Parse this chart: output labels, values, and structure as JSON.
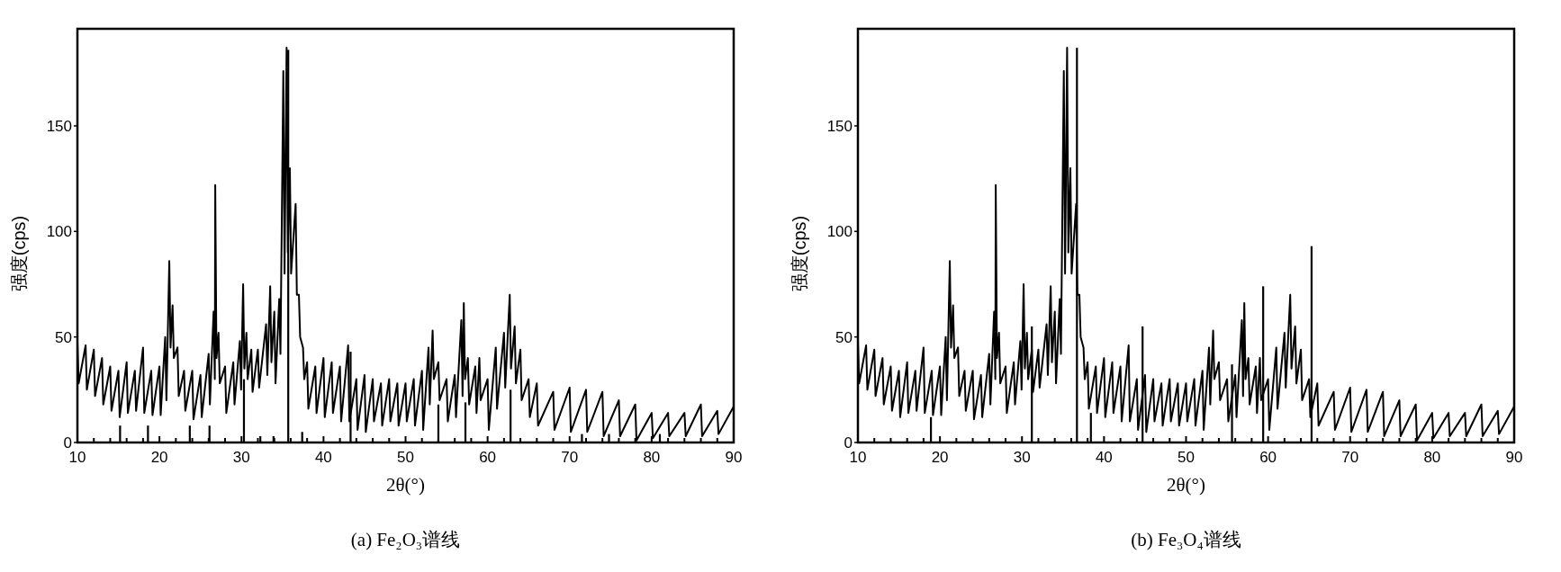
{
  "chart_data": [
    {
      "type": "line",
      "title": "(a) Fe₂O₃谱线",
      "xlabel": "2θ(°)",
      "ylabel": "强度(cps)",
      "xlim": [
        10,
        90
      ],
      "ylim": [
        0,
        196
      ],
      "xticks": [
        10,
        {
          "value": 12,
          "label": null
        },
        {
          "value": 14,
          "label": null
        },
        {
          "value": 16,
          "label": null
        },
        {
          "value": 18,
          "label": null
        },
        20,
        {
          "value": 22,
          "label": null
        },
        {
          "value": 24,
          "label": null
        },
        {
          "value": 26,
          "label": null
        },
        {
          "value": 28,
          "label": null
        },
        30,
        {
          "value": 32,
          "label": null
        },
        {
          "value": 34,
          "label": null
        },
        {
          "value": 36,
          "label": null
        },
        {
          "value": 38,
          "label": null
        },
        40,
        {
          "value": 42,
          "label": null
        },
        {
          "value": 44,
          "label": null
        },
        {
          "value": 46,
          "label": null
        },
        {
          "value": 48,
          "label": null
        },
        50,
        {
          "value": 52,
          "label": null
        },
        {
          "value": 54,
          "label": null
        },
        {
          "value": 56,
          "label": null
        },
        {
          "value": 58,
          "label": null
        },
        60,
        {
          "value": 62,
          "label": null
        },
        {
          "value": 64,
          "label": null
        },
        {
          "value": 66,
          "label": null
        },
        {
          "value": 68,
          "label": null
        },
        70,
        {
          "value": 72,
          "label": null
        },
        {
          "value": 74,
          "label": null
        },
        {
          "value": 76,
          "label": null
        },
        {
          "value": 78,
          "label": null
        },
        80,
        {
          "value": 82,
          "label": null
        },
        {
          "value": 84,
          "label": null
        },
        {
          "value": 86,
          "label": null
        },
        {
          "value": 88,
          "label": null
        },
        90
      ],
      "yticks": [
        0,
        50,
        100,
        150
      ],
      "series": [
        {
          "color": "#000000",
          "x": [
            10,
            10.15,
            11,
            11.15,
            12,
            12.15,
            13,
            13.15,
            14,
            14.15,
            15,
            15.15,
            16,
            16.15,
            17,
            17.15,
            18,
            18.15,
            19,
            19.15,
            20,
            20.15,
            20.7,
            20.85,
            21.2,
            21.35,
            21.6,
            21.75,
            22.2,
            22.35,
            23,
            23.15,
            24,
            24.15,
            25,
            25.15,
            26,
            26.15,
            26.6,
            26.75,
            26.8,
            26.95,
            27.2,
            27.35,
            28,
            28.15,
            29,
            29.15,
            29.8,
            29.95,
            30.2,
            30.35,
            30.6,
            30.75,
            31.2,
            31.35,
            32,
            32.15,
            33,
            33.15,
            33.5,
            33.65,
            34,
            34.15,
            34.6,
            34.75,
            35.1,
            35.25,
            35.5,
            35.65,
            35.9,
            36.05,
            36.6,
            36.75,
            37,
            37.15,
            37.5,
            37.65,
            38,
            38.15,
            39,
            39.15,
            40,
            40.15,
            41,
            41.15,
            42,
            42.15,
            43,
            43.15,
            44,
            44.15,
            45,
            45.15,
            46,
            46.15,
            47,
            47.15,
            48,
            48.15,
            49,
            49.15,
            50,
            50.15,
            51,
            51.15,
            52,
            52.15,
            52.8,
            52.95,
            53.3,
            53.45,
            54,
            54.15,
            55,
            55.15,
            56,
            56.15,
            56.8,
            56.95,
            57.1,
            57.25,
            57.6,
            57.75,
            58.5,
            58.65,
            59,
            59.15,
            60,
            60.15,
            61,
            61.15,
            62,
            62.15,
            62.7,
            62.85,
            63.3,
            63.45,
            64,
            64.15,
            65,
            65.15,
            66,
            66.15,
            68,
            68.15,
            70,
            70.15,
            72,
            72.15,
            74,
            74.15,
            76,
            76.15,
            78,
            78.15,
            80,
            80.15,
            82,
            82.15,
            84,
            84.15,
            86,
            86.15,
            88,
            88.15,
            90
          ],
          "values": [
            48,
            28,
            46,
            25,
            44,
            22,
            40,
            18,
            36,
            15,
            34,
            12,
            38,
            14,
            34,
            15,
            45,
            14,
            34,
            13,
            36,
            13,
            50,
            20,
            86,
            45,
            65,
            40,
            45,
            22,
            34,
            15,
            34,
            11,
            32,
            12,
            42,
            18,
            62,
            30,
            122,
            40,
            52,
            28,
            36,
            14,
            38,
            18,
            48,
            25,
            75,
            35,
            52,
            30,
            44,
            24,
            44,
            26,
            56,
            32,
            74,
            38,
            62,
            28,
            68,
            42,
            176,
            80,
            187,
            90,
            130,
            80,
            113,
            70,
            70,
            50,
            45,
            30,
            38,
            16,
            36,
            14,
            40,
            12,
            38,
            14,
            36,
            10,
            46,
            10,
            30,
            6,
            32,
            5,
            30,
            10,
            28,
            8,
            30,
            10,
            28,
            8,
            28,
            10,
            30,
            8,
            34,
            6,
            45,
            18,
            53,
            30,
            38,
            20,
            30,
            10,
            32,
            12,
            58,
            22,
            66,
            30,
            40,
            18,
            36,
            14,
            40,
            20,
            30,
            6,
            45,
            16,
            52,
            26,
            70,
            35,
            55,
            28,
            44,
            20,
            30,
            12,
            28,
            8,
            24,
            6,
            26,
            5,
            25,
            5,
            24,
            3,
            20,
            3,
            18,
            1,
            14,
            2,
            14,
            3,
            14,
            3,
            18,
            3,
            15,
            4,
            17
          ]
        },
        {
          "type": "bar",
          "color": "#000000",
          "x": [
            15.2,
            18.6,
            23.7,
            26.1,
            30.3,
            32.3,
            33.9,
            35.7,
            37.4,
            43.3,
            54,
            57.3,
            62.8,
            71.5,
            74.8,
            81
          ],
          "values": [
            8,
            8,
            8,
            8,
            30,
            3,
            3,
            186,
            5,
            43,
            18,
            19,
            25,
            4,
            4,
            4
          ]
        }
      ]
    },
    {
      "type": "line",
      "title": "(b) Fe₃O₄谱线",
      "xlabel": "2θ(°)",
      "ylabel": "强度(cps)",
      "xlim": [
        10,
        90
      ],
      "ylim": [
        0,
        196
      ],
      "xticks": [
        10,
        {
          "value": 12,
          "label": null
        },
        {
          "value": 14,
          "label": null
        },
        {
          "value": 16,
          "label": null
        },
        {
          "value": 18,
          "label": null
        },
        20,
        {
          "value": 22,
          "label": null
        },
        {
          "value": 24,
          "label": null
        },
        {
          "value": 26,
          "label": null
        },
        {
          "value": 28,
          "label": null
        },
        30,
        {
          "value": 32,
          "label": null
        },
        {
          "value": 34,
          "label": null
        },
        {
          "value": 36,
          "label": null
        },
        {
          "value": 38,
          "label": null
        },
        40,
        {
          "value": 42,
          "label": null
        },
        {
          "value": 44,
          "label": null
        },
        {
          "value": 46,
          "label": null
        },
        {
          "value": 48,
          "label": null
        },
        50,
        {
          "value": 52,
          "label": null
        },
        {
          "value": 54,
          "label": null
        },
        {
          "value": 56,
          "label": null
        },
        {
          "value": 58,
          "label": null
        },
        60,
        {
          "value": 62,
          "label": null
        },
        {
          "value": 64,
          "label": null
        },
        {
          "value": 66,
          "label": null
        },
        {
          "value": 68,
          "label": null
        },
        70,
        {
          "value": 72,
          "label": null
        },
        {
          "value": 74,
          "label": null
        },
        {
          "value": 76,
          "label": null
        },
        {
          "value": 78,
          "label": null
        },
        80,
        {
          "value": 82,
          "label": null
        },
        {
          "value": 84,
          "label": null
        },
        {
          "value": 86,
          "label": null
        },
        {
          "value": 88,
          "label": null
        },
        90
      ],
      "yticks": [
        0,
        50,
        100,
        150
      ],
      "series": [
        {
          "color": "#000000",
          "x": [
            10,
            10.15,
            11,
            11.15,
            12,
            12.15,
            13,
            13.15,
            14,
            14.15,
            15,
            15.15,
            16,
            16.15,
            17,
            17.15,
            18,
            18.15,
            19,
            19.15,
            20,
            20.15,
            20.7,
            20.85,
            21.2,
            21.35,
            21.6,
            21.75,
            22.2,
            22.35,
            23,
            23.15,
            24,
            24.15,
            25,
            25.15,
            26,
            26.15,
            26.6,
            26.75,
            26.8,
            26.95,
            27.2,
            27.35,
            28,
            28.15,
            29,
            29.15,
            29.8,
            29.95,
            30.2,
            30.35,
            30.6,
            30.75,
            31.2,
            31.35,
            32,
            32.15,
            33,
            33.15,
            33.5,
            33.65,
            34,
            34.15,
            34.6,
            34.75,
            35.1,
            35.25,
            35.5,
            35.65,
            35.9,
            36.05,
            36.6,
            36.75,
            37,
            37.15,
            37.5,
            37.65,
            38,
            38.15,
            39,
            39.15,
            40,
            40.15,
            41,
            41.15,
            42,
            42.15,
            43,
            43.15,
            44,
            44.15,
            45,
            45.15,
            46,
            46.15,
            47,
            47.15,
            48,
            48.15,
            49,
            49.15,
            50,
            50.15,
            51,
            51.15,
            52,
            52.15,
            52.8,
            52.95,
            53.3,
            53.45,
            54,
            54.15,
            55,
            55.15,
            56,
            56.15,
            56.8,
            56.95,
            57.1,
            57.25,
            57.6,
            57.75,
            58.5,
            58.65,
            59,
            59.15,
            60,
            60.15,
            61,
            61.15,
            62,
            62.15,
            62.7,
            62.85,
            63.3,
            63.45,
            64,
            64.15,
            65,
            65.15,
            66,
            66.15,
            68,
            68.15,
            70,
            70.15,
            72,
            72.15,
            74,
            74.15,
            76,
            76.15,
            78,
            78.15,
            80,
            80.15,
            82,
            82.15,
            84,
            84.15,
            86,
            86.15,
            88,
            88.15,
            90
          ],
          "values": [
            48,
            28,
            46,
            25,
            44,
            22,
            40,
            18,
            36,
            15,
            34,
            12,
            38,
            14,
            34,
            15,
            45,
            14,
            34,
            13,
            36,
            13,
            50,
            20,
            86,
            45,
            65,
            40,
            45,
            22,
            34,
            15,
            34,
            11,
            32,
            12,
            42,
            18,
            62,
            30,
            122,
            40,
            52,
            28,
            36,
            14,
            38,
            18,
            48,
            25,
            75,
            35,
            52,
            30,
            44,
            24,
            44,
            26,
            56,
            32,
            74,
            38,
            62,
            28,
            68,
            42,
            176,
            80,
            187,
            90,
            130,
            80,
            113,
            70,
            70,
            50,
            45,
            30,
            38,
            16,
            36,
            14,
            40,
            12,
            38,
            14,
            36,
            10,
            46,
            10,
            30,
            6,
            32,
            5,
            30,
            10,
            28,
            8,
            30,
            10,
            28,
            8,
            28,
            10,
            30,
            8,
            34,
            6,
            45,
            18,
            53,
            30,
            38,
            20,
            30,
            10,
            32,
            12,
            58,
            22,
            66,
            30,
            40,
            18,
            36,
            14,
            40,
            20,
            30,
            6,
            45,
            16,
            52,
            26,
            70,
            35,
            55,
            28,
            44,
            20,
            30,
            12,
            28,
            8,
            24,
            6,
            26,
            5,
            25,
            5,
            24,
            3,
            20,
            3,
            18,
            1,
            14,
            2,
            14,
            3,
            14,
            3,
            18,
            3,
            15,
            4,
            17
          ]
        },
        {
          "type": "bar",
          "color": "#000000",
          "x": [
            18.9,
            31.2,
            36.7,
            38.4,
            44.7,
            55.6,
            59.4,
            65.3
          ],
          "values": [
            12,
            55,
            187,
            14,
            55,
            37,
            74,
            93
          ]
        }
      ]
    }
  ]
}
